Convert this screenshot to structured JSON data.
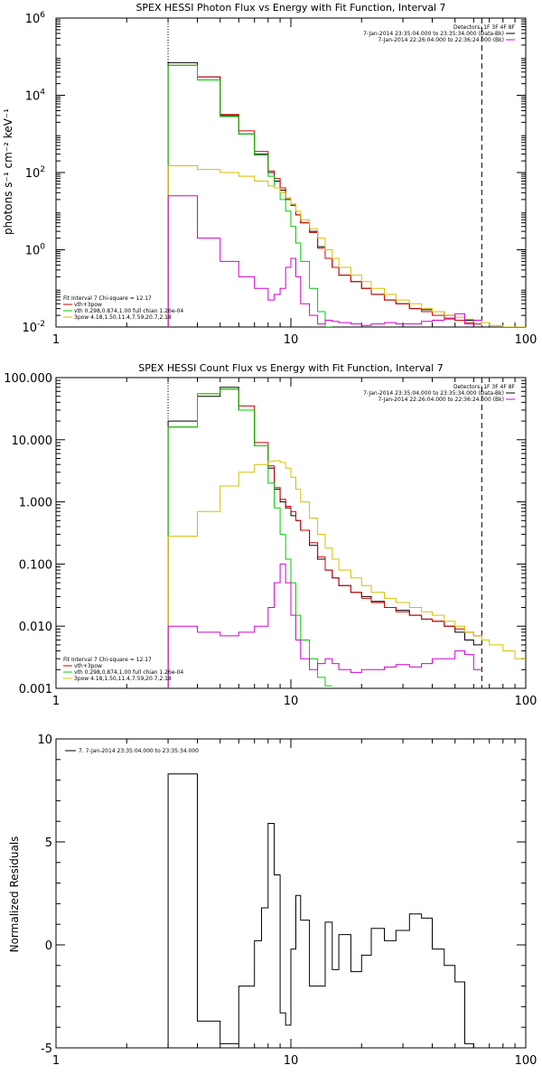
{
  "colors": {
    "data": "#000000",
    "total": "#d40000",
    "thermal": "#00cc00",
    "powerlaw": "#d4c000",
    "background": "#d400d4"
  },
  "chart_data": [
    {
      "type": "line",
      "title": "SPEX HESSI Photon Flux vs Energy with Fit Function, Interval 7",
      "ylabel": "photons s⁻¹ cm⁻² keV⁻¹",
      "xlabel": "",
      "xscale": "log",
      "yscale": "log",
      "xlim": [
        1,
        100
      ],
      "ylim": [
        0.01,
        1000000
      ],
      "xticks": [
        1,
        10,
        100
      ],
      "xtick_labels": [
        "1",
        "10",
        "100"
      ],
      "yticks": [
        0.01,
        1,
        100,
        10000,
        1000000
      ],
      "ytick_labels": [
        {
          "base": "10",
          "exp": "-2"
        },
        {
          "base": "10",
          "exp": "0"
        },
        {
          "base": "10",
          "exp": "2"
        },
        {
          "base": "10",
          "exp": "4"
        },
        {
          "base": "10",
          "exp": "6"
        }
      ],
      "vlines": [
        {
          "x": 3,
          "style": "dotted"
        },
        {
          "x": 65,
          "style": "dashed"
        }
      ],
      "legend_top": {
        "header": "Detectors: 1F 3F 4F 8F",
        "rows": [
          {
            "text": "7-Jan-2014 23:35:04.000 to 23:35:34.000 (Data-Bk)",
            "color": "data"
          },
          {
            "text": "7-Jan-2014 22:26:04.000 to 22:36:24.000 (Bk)",
            "color": "background"
          }
        ]
      },
      "legend_bottom": {
        "header": "Fit Interval 7   Chi-square = 12.17",
        "rows": [
          {
            "text": "vth+3pow",
            "color": "total"
          },
          {
            "text": "vth 0.298,0.874,1.00  full chian 1.26e-04",
            "color": "thermal"
          },
          {
            "text": "3pow 4.18,1.50,11.4,7.59,20.7,2.18",
            "color": "powerlaw"
          }
        ]
      },
      "edges": [
        3,
        4,
        5,
        6,
        7,
        8,
        8.5,
        9,
        9.5,
        10,
        10.5,
        11,
        12,
        13,
        14,
        15,
        16,
        18,
        20,
        22,
        25,
        28,
        32,
        36,
        40,
        45,
        50,
        55,
        60,
        65,
        70,
        80,
        90,
        100
      ],
      "series": [
        {
          "color": "data",
          "range": [
            3,
            65
          ],
          "values": [
            70000,
            30000,
            3000,
            1000,
            300,
            100,
            60,
            35,
            20,
            15,
            8,
            5,
            3,
            1.2,
            0.6,
            0.35,
            0.22,
            0.15,
            0.1,
            0.07,
            0.05,
            0.04,
            0.03,
            0.028,
            0.025,
            0.02,
            0.015,
            0.015,
            0.015
          ]
        },
        {
          "color": "total",
          "range": [
            3,
            65
          ],
          "values": [
            60000,
            30000,
            3200,
            1200,
            350,
            110,
            70,
            40,
            22,
            14,
            8,
            5,
            2.8,
            1.1,
            0.6,
            0.35,
            0.22,
            0.15,
            0.1,
            0.07,
            0.05,
            0.04,
            0.03,
            0.025,
            0.02,
            0.017,
            0.015,
            0.013,
            0.012
          ]
        },
        {
          "color": "thermal",
          "range": [
            3,
            16
          ],
          "values": [
            60000,
            25000,
            2800,
            1000,
            280,
            80,
            40,
            20,
            10,
            4,
            1.5,
            0.5,
            0.1,
            0.025,
            0.01
          ]
        },
        {
          "color": "powerlaw",
          "range": [
            3,
            100
          ],
          "values": [
            150,
            120,
            100,
            80,
            60,
            45,
            40,
            30,
            22,
            15,
            10,
            6,
            3.5,
            2,
            1,
            0.6,
            0.35,
            0.22,
            0.15,
            0.1,
            0.07,
            0.05,
            0.04,
            0.03,
            0.025,
            0.02,
            0.018,
            0.016,
            0.015,
            0.013,
            0.011,
            0.01,
            0.009
          ]
        },
        {
          "color": "background",
          "range": [
            3,
            65
          ],
          "values": [
            25,
            2,
            0.5,
            0.2,
            0.1,
            0.05,
            0.07,
            0.1,
            0.35,
            0.6,
            0.2,
            0.04,
            0.02,
            0.012,
            0.015,
            0.014,
            0.013,
            0.012,
            0.011,
            0.012,
            0.013,
            0.012,
            0.012,
            0.014,
            0.015,
            0.016,
            0.022,
            0.012,
            0.015
          ]
        }
      ]
    },
    {
      "type": "line",
      "title": "SPEX HESSI Count Flux vs Energy with Fit Function, Interval 7",
      "xlabel": "",
      "ylabel": "",
      "xscale": "log",
      "yscale": "log",
      "xlim": [
        1,
        100
      ],
      "ylim": [
        0.001,
        100
      ],
      "xticks": [
        1,
        10,
        100
      ],
      "xtick_labels": [
        "1",
        "10",
        "100"
      ],
      "yticks": [
        0.001,
        0.01,
        0.1,
        1,
        10,
        100
      ],
      "ytick_labels": [
        "0.001",
        "0.010",
        "0.100",
        "1.000",
        "10.000",
        "100.000"
      ],
      "vlines": [
        {
          "x": 3,
          "style": "dotted"
        },
        {
          "x": 65,
          "style": "dashed"
        }
      ],
      "legend_top": {
        "header": "Detectors: 1F 3F 4F 8F",
        "rows": [
          {
            "text": "7-Jan-2014 23:35:04.000 to 23:35:34.000 (Data-Bk)",
            "color": "data"
          },
          {
            "text": "7-Jan-2014 22:26:04.000 to 22:36:24.000 (Bk)",
            "color": "background"
          }
        ]
      },
      "legend_bottom": {
        "header": "Fit Interval 7   Chi-square = 12.17",
        "rows": [
          {
            "text": "vth+3pow",
            "color": "total"
          },
          {
            "text": "vth 0.298,0.874,1.00  full chian 1.26e-04",
            "color": "thermal"
          },
          {
            "text": "3pow 4.18,1.50,11.4,7.59,20.7,2.18",
            "color": "powerlaw"
          }
        ]
      },
      "edges": [
        3,
        4,
        5,
        6,
        7,
        8,
        8.5,
        9,
        9.5,
        10,
        10.5,
        11,
        12,
        13,
        14,
        15,
        16,
        18,
        20,
        22,
        25,
        28,
        32,
        36,
        40,
        45,
        50,
        55,
        60,
        65,
        70,
        80,
        90,
        100
      ],
      "series": [
        {
          "color": "data",
          "range": [
            3,
            65
          ],
          "values": [
            20,
            50,
            70,
            30,
            8,
            3.5,
            1.6,
            1,
            0.8,
            0.6,
            0.5,
            0.35,
            0.2,
            0.12,
            0.08,
            0.06,
            0.045,
            0.035,
            0.03,
            0.025,
            0.02,
            0.018,
            0.015,
            0.013,
            0.012,
            0.01,
            0.008,
            0.006,
            0.005
          ]
        },
        {
          "color": "total",
          "range": [
            3,
            65
          ],
          "values": [
            16,
            55,
            65,
            35,
            9,
            3.8,
            1.7,
            1.1,
            0.85,
            0.7,
            0.5,
            0.35,
            0.22,
            0.13,
            0.08,
            0.06,
            0.045,
            0.035,
            0.028,
            0.024,
            0.02,
            0.017,
            0.015,
            0.013,
            0.012,
            0.01,
            0.009,
            0.008,
            0.007
          ]
        },
        {
          "color": "thermal",
          "range": [
            3,
            16.5
          ],
          "values": [
            16,
            55,
            65,
            30,
            8,
            2,
            0.8,
            0.3,
            0.12,
            0.05,
            0.015,
            0.006,
            0.003,
            0.0015,
            0.0011
          ]
        },
        {
          "color": "powerlaw",
          "range": [
            3,
            100
          ],
          "values": [
            0.28,
            0.7,
            1.8,
            3,
            4,
            4.5,
            4.6,
            4.3,
            3.5,
            2.5,
            1.6,
            1,
            0.55,
            0.3,
            0.18,
            0.12,
            0.08,
            0.06,
            0.045,
            0.035,
            0.028,
            0.024,
            0.02,
            0.017,
            0.015,
            0.012,
            0.01,
            0.008,
            0.007,
            0.006,
            0.005,
            0.004,
            0.003
          ]
        },
        {
          "color": "background",
          "range": [
            3,
            65
          ],
          "values": [
            0.01,
            0.008,
            0.007,
            0.008,
            0.01,
            0.02,
            0.05,
            0.1,
            0.05,
            0.015,
            0.006,
            0.003,
            0.002,
            0.0025,
            0.003,
            0.0025,
            0.002,
            0.0018,
            0.002,
            0.002,
            0.0022,
            0.0024,
            0.0022,
            0.0025,
            0.003,
            0.003,
            0.004,
            0.0035,
            0.002
          ]
        }
      ]
    },
    {
      "type": "line",
      "title": "",
      "xlabel": "",
      "ylabel": "Normalized Residuals",
      "xscale": "log",
      "yscale": "linear",
      "xlim": [
        1,
        100
      ],
      "ylim": [
        -5,
        10
      ],
      "xticks": [
        1,
        10,
        100
      ],
      "xtick_labels": [
        "1",
        "10",
        "100"
      ],
      "yticks": [
        -5,
        0,
        5,
        10
      ],
      "ytick_labels": [
        "-5",
        "0",
        "5",
        "10"
      ],
      "legend_top": {
        "header": "",
        "rows": [
          {
            "text": "7.  7-Jan-2014 23:35:04.000 to 23:35:34.000",
            "color": "data"
          }
        ]
      },
      "edges": [
        3,
        4,
        5,
        6,
        7,
        7.5,
        8,
        8.5,
        9,
        9.5,
        10,
        10.5,
        11,
        12,
        13,
        14,
        15,
        16,
        18,
        20,
        22,
        25,
        28,
        32,
        36,
        40,
        45,
        50,
        55,
        60,
        65
      ],
      "series": [
        {
          "color": "data",
          "range": [
            3,
            65
          ],
          "values": [
            8.3,
            -3.7,
            -4.8,
            -2.0,
            0.2,
            1.8,
            5.9,
            3.4,
            -3.3,
            -3.9,
            -0.2,
            2.4,
            1.2,
            -2.0,
            -2.0,
            1.1,
            -1.2,
            0.5,
            -1.3,
            -0.5,
            0.8,
            0.2,
            0.7,
            1.5,
            1.3,
            -0.2,
            -1.0,
            -1.8,
            -4.8,
            -5.0
          ]
        }
      ]
    }
  ]
}
